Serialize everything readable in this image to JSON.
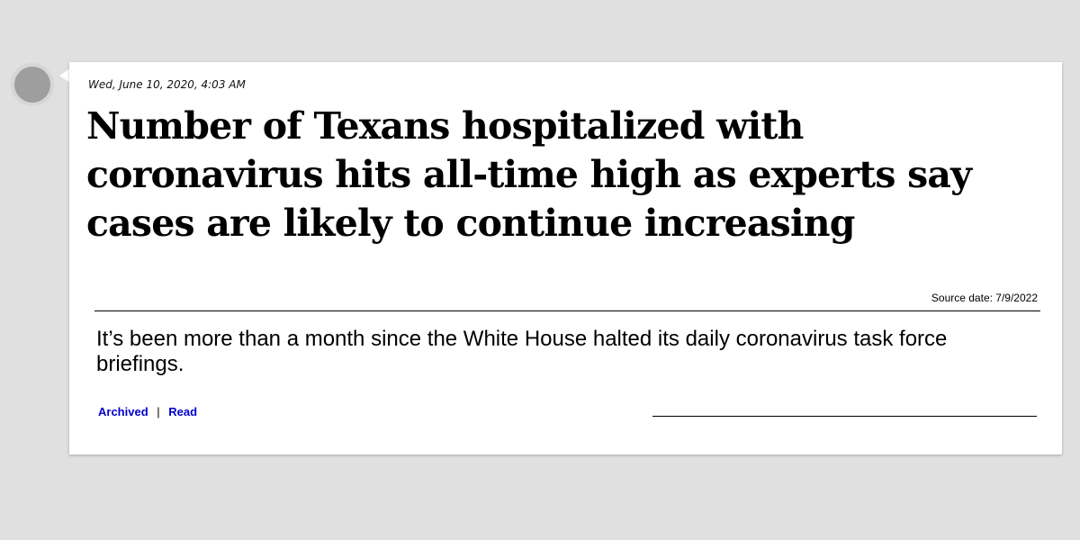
{
  "post": {
    "timestamp": "Wed, June 10, 2020, 4:03 AM",
    "headline": "Number of Texans hospitalized with coronavirus hits all-time high as experts say cases are likely to continue increasing",
    "source_date": "Source date: 7/9/2022",
    "summary": "It’s been more than a month since the White House halted its daily coronavirus task force briefings.",
    "links": {
      "archived": "Archived",
      "separator": "|",
      "read": "Read"
    }
  },
  "colors": {
    "background": "#e0e0e0",
    "card": "#ffffff",
    "link": "#0000cc",
    "avatar": "#9e9e9e"
  },
  "icons": {
    "avatar": "avatar-circle"
  }
}
